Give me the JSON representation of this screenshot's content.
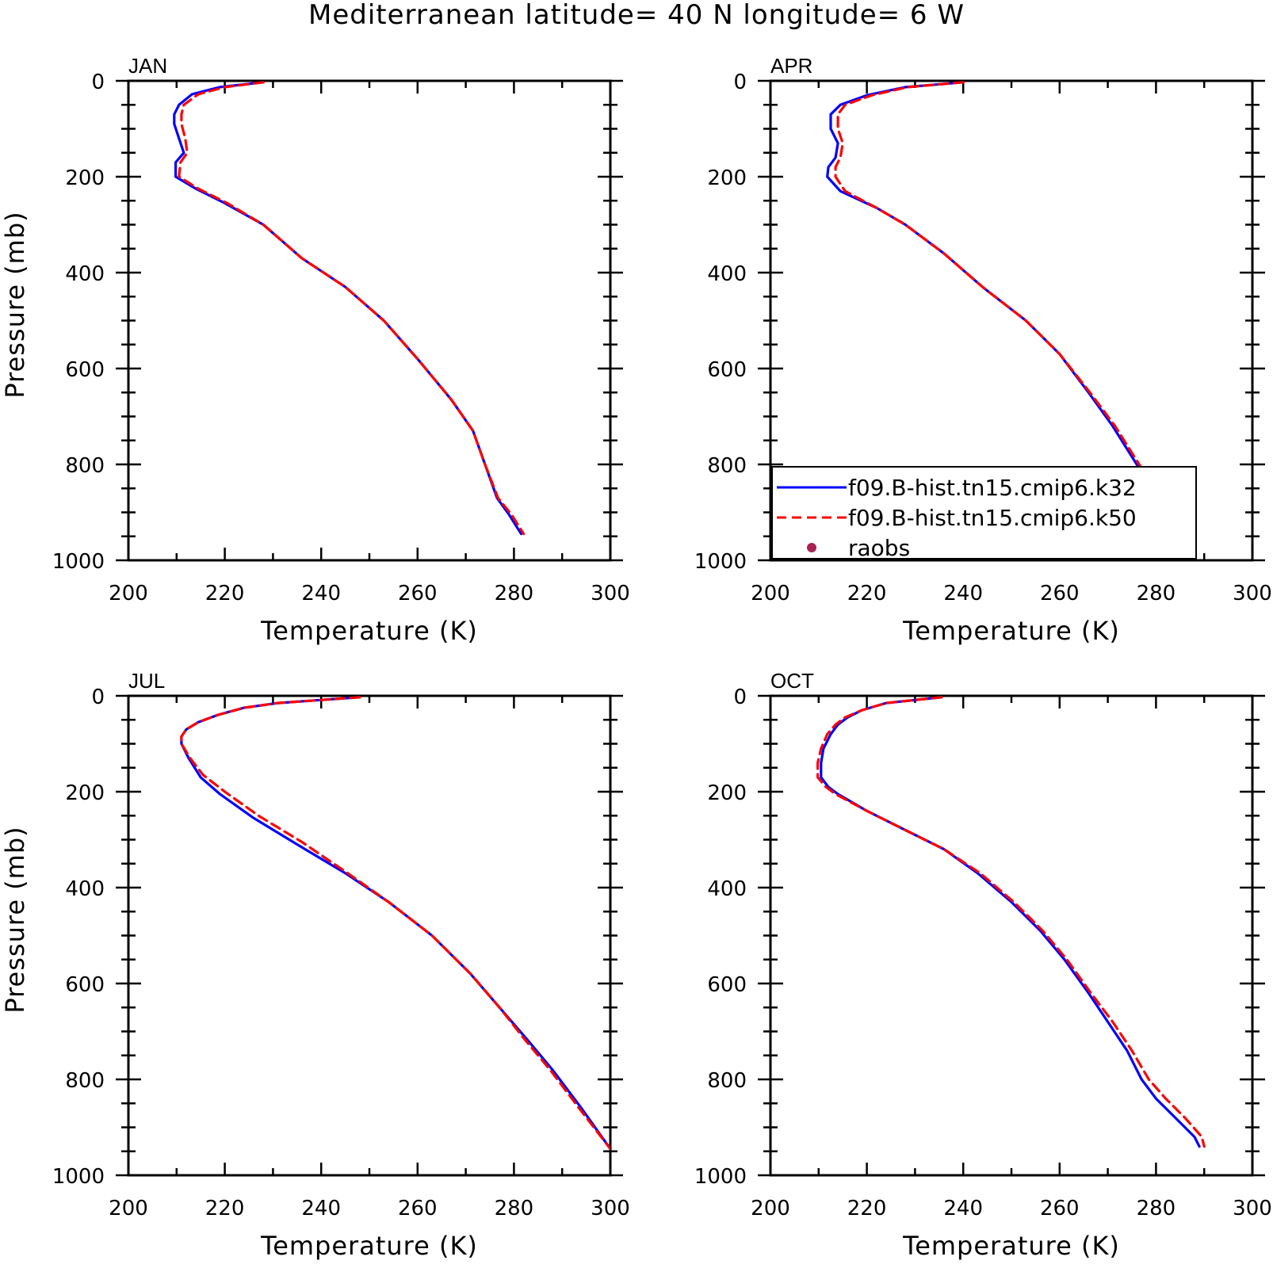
{
  "title": "Mediterranean  latitude= 40 N longitude= 6 W",
  "chart_data": [
    {
      "type": "line",
      "panel": "JAN",
      "xlabel": "Temperature (K)",
      "ylabel": "Pressure (mb)",
      "xlim": [
        200,
        300
      ],
      "ylim": [
        0,
        1000
      ],
      "y_inverted": true,
      "xticks": [
        "200",
        "220",
        "240",
        "260",
        "280",
        "300"
      ],
      "yticks": [
        "0",
        "200",
        "400",
        "600",
        "800",
        "1000"
      ],
      "series": [
        {
          "name": "f09.B-hist.tn15.cmip6.k32",
          "color": "#0000ff",
          "dash": "solid",
          "points": [
            [
              228.0,
              3
            ],
            [
              219.0,
              13
            ],
            [
              213.2,
              28
            ],
            [
              210.5,
              50
            ],
            [
              209.5,
              70
            ],
            [
              209.5,
              90
            ],
            [
              210.5,
              120
            ],
            [
              211.5,
              150
            ],
            [
              209.8,
              170
            ],
            [
              209.8,
              200
            ],
            [
              214.0,
              225
            ],
            [
              220.0,
              255
            ],
            [
              228.0,
              300
            ],
            [
              236.0,
              370
            ],
            [
              245.0,
              430
            ],
            [
              253.0,
              500
            ],
            [
              260.0,
              580
            ],
            [
              267.0,
              665
            ],
            [
              271.5,
              730
            ],
            [
              274.0,
              800
            ],
            [
              276.5,
              870
            ],
            [
              279.0,
              905
            ],
            [
              281.5,
              945
            ]
          ]
        },
        {
          "name": "f09.B-hist.tn15.cmip6.k50",
          "color": "#ff0000",
          "dash": "dashed",
          "points": [
            [
              228.0,
              3
            ],
            [
              220.0,
              13
            ],
            [
              214.5,
              28
            ],
            [
              211.5,
              50
            ],
            [
              211.0,
              70
            ],
            [
              211.0,
              90
            ],
            [
              211.8,
              120
            ],
            [
              212.2,
              150
            ],
            [
              210.8,
              170
            ],
            [
              210.5,
              200
            ],
            [
              214.5,
              225
            ],
            [
              220.5,
              255
            ],
            [
              228.0,
              300
            ],
            [
              236.0,
              370
            ],
            [
              245.0,
              430
            ],
            [
              253.0,
              500
            ],
            [
              260.0,
              580
            ],
            [
              267.0,
              665
            ],
            [
              271.5,
              730
            ],
            [
              274.0,
              800
            ],
            [
              276.7,
              870
            ],
            [
              279.5,
              905
            ],
            [
              282.0,
              945
            ]
          ]
        },
        {
          "name": "raobs",
          "color": "#aa2255",
          "marker": "dot",
          "points": []
        }
      ]
    },
    {
      "type": "line",
      "panel": "APR",
      "xlabel": "Temperature (K)",
      "ylabel": "",
      "xlim": [
        200,
        300
      ],
      "ylim": [
        0,
        1000
      ],
      "y_inverted": true,
      "xticks": [
        "200",
        "220",
        "240",
        "260",
        "280",
        "300"
      ],
      "yticks": [
        "0",
        "200",
        "400",
        "600",
        "800",
        "1000"
      ],
      "legend_position": "lower-left",
      "series": [
        {
          "name": "f09.B-hist.tn15.cmip6.k32",
          "color": "#0000ff",
          "dash": "solid",
          "points": [
            [
              240.0,
              3
            ],
            [
              228.0,
              13
            ],
            [
              220.0,
              30
            ],
            [
              214.5,
              50
            ],
            [
              212.5,
              70
            ],
            [
              212.5,
              100
            ],
            [
              214.0,
              130
            ],
            [
              213.5,
              160
            ],
            [
              212.0,
              180
            ],
            [
              211.8,
              200
            ],
            [
              214.5,
              230
            ],
            [
              222.0,
              265
            ],
            [
              228.0,
              300
            ],
            [
              236.0,
              360
            ],
            [
              244.0,
              430
            ],
            [
              253.0,
              500
            ],
            [
              260.0,
              570
            ],
            [
              266.0,
              650
            ],
            [
              271.0,
              720
            ],
            [
              276.0,
              800
            ],
            [
              280.0,
              860
            ],
            [
              284.0,
              905
            ],
            [
              286.5,
              940
            ]
          ]
        },
        {
          "name": "f09.B-hist.tn15.cmip6.k50",
          "color": "#ff0000",
          "dash": "dashed",
          "points": [
            [
              240.0,
              3
            ],
            [
              228.5,
              13
            ],
            [
              221.0,
              30
            ],
            [
              215.5,
              50
            ],
            [
              214.0,
              70
            ],
            [
              214.0,
              100
            ],
            [
              215.0,
              130
            ],
            [
              214.5,
              160
            ],
            [
              213.5,
              180
            ],
            [
              213.5,
              200
            ],
            [
              215.5,
              230
            ],
            [
              222.0,
              265
            ],
            [
              228.0,
              300
            ],
            [
              236.0,
              360
            ],
            [
              244.0,
              430
            ],
            [
              253.0,
              500
            ],
            [
              260.0,
              570
            ],
            [
              266.3,
              650
            ],
            [
              271.5,
              720
            ],
            [
              276.5,
              800
            ],
            [
              281.0,
              860
            ],
            [
              285.0,
              905
            ],
            [
              287.0,
              940
            ]
          ]
        },
        {
          "name": "raobs",
          "color": "#aa2255",
          "marker": "dot",
          "points": []
        }
      ]
    },
    {
      "type": "line",
      "panel": "JUL",
      "xlabel": "Temperature (K)",
      "ylabel": "Pressure (mb)",
      "xlim": [
        200,
        300
      ],
      "ylim": [
        0,
        1000
      ],
      "y_inverted": true,
      "xticks": [
        "200",
        "220",
        "240",
        "260",
        "280",
        "300"
      ],
      "yticks": [
        "0",
        "200",
        "400",
        "600",
        "800",
        "1000"
      ],
      "series": [
        {
          "name": "f09.B-hist.tn15.cmip6.k32",
          "color": "#0000ff",
          "dash": "solid",
          "points": [
            [
              248.0,
              3
            ],
            [
              231.0,
              15
            ],
            [
              224.0,
              25
            ],
            [
              218.5,
              40
            ],
            [
              214.5,
              55
            ],
            [
              212.0,
              70
            ],
            [
              211.0,
              85
            ],
            [
              211.0,
              100
            ],
            [
              212.5,
              130
            ],
            [
              215.0,
              170
            ],
            [
              219.0,
              205
            ],
            [
              226.0,
              255
            ],
            [
              235.0,
              310
            ],
            [
              245.0,
              370
            ],
            [
              254.0,
              430
            ],
            [
              263.0,
              500
            ],
            [
              271.0,
              580
            ],
            [
              277.0,
              650
            ],
            [
              283.0,
              720
            ],
            [
              288.0,
              780
            ],
            [
              294.0,
              860
            ],
            [
              300.0,
              945
            ]
          ]
        },
        {
          "name": "f09.B-hist.tn15.cmip6.k50",
          "color": "#ff0000",
          "dash": "dashed",
          "points": [
            [
              248.0,
              3
            ],
            [
              231.0,
              15
            ],
            [
              224.0,
              25
            ],
            [
              218.5,
              40
            ],
            [
              214.5,
              55
            ],
            [
              212.0,
              70
            ],
            [
              211.0,
              85
            ],
            [
              211.0,
              100
            ],
            [
              212.8,
              130
            ],
            [
              215.5,
              165
            ],
            [
              220.0,
              200
            ],
            [
              227.0,
              250
            ],
            [
              236.0,
              305
            ],
            [
              245.5,
              370
            ],
            [
              254.0,
              430
            ],
            [
              263.0,
              500
            ],
            [
              271.0,
              580
            ],
            [
              277.0,
              650
            ],
            [
              282.5,
              720
            ],
            [
              287.5,
              780
            ],
            [
              293.5,
              860
            ],
            [
              300.0,
              945
            ]
          ]
        },
        {
          "name": "raobs",
          "color": "#aa2255",
          "marker": "dot",
          "points": []
        }
      ]
    },
    {
      "type": "line",
      "panel": "OCT",
      "xlabel": "Temperature (K)",
      "ylabel": "",
      "xlim": [
        200,
        300
      ],
      "ylim": [
        0,
        1000
      ],
      "y_inverted": true,
      "xticks": [
        "200",
        "220",
        "240",
        "260",
        "280",
        "300"
      ],
      "yticks": [
        "0",
        "200",
        "400",
        "600",
        "800",
        "1000"
      ],
      "series": [
        {
          "name": "f09.B-hist.tn15.cmip6.k32",
          "color": "#0000ff",
          "dash": "solid",
          "points": [
            [
              235.5,
              3
            ],
            [
              224.0,
              15
            ],
            [
              219.0,
              30
            ],
            [
              216.0,
              45
            ],
            [
              214.0,
              60
            ],
            [
              212.5,
              80
            ],
            [
              211.0,
              110
            ],
            [
              210.5,
              140
            ],
            [
              210.5,
              170
            ],
            [
              212.0,
              190
            ],
            [
              214.0,
              205
            ],
            [
              220.0,
              240
            ],
            [
              228.0,
              280
            ],
            [
              236.0,
              320
            ],
            [
              243.0,
              370
            ],
            [
              250.0,
              430
            ],
            [
              256.0,
              490
            ],
            [
              261.0,
              550
            ],
            [
              266.0,
              620
            ],
            [
              270.0,
              680
            ],
            [
              274.0,
              740
            ],
            [
              277.0,
              800
            ],
            [
              280.0,
              840
            ],
            [
              284.0,
              880
            ],
            [
              288.0,
              920
            ],
            [
              289.0,
              940
            ]
          ]
        },
        {
          "name": "f09.B-hist.tn15.cmip6.k50",
          "color": "#ff0000",
          "dash": "dashed",
          "points": [
            [
              235.5,
              3
            ],
            [
              224.0,
              15
            ],
            [
              219.0,
              30
            ],
            [
              215.5,
              45
            ],
            [
              213.5,
              60
            ],
            [
              211.8,
              80
            ],
            [
              210.5,
              110
            ],
            [
              209.8,
              140
            ],
            [
              209.8,
              170
            ],
            [
              211.5,
              190
            ],
            [
              213.5,
              205
            ],
            [
              220.0,
              240
            ],
            [
              228.0,
              280
            ],
            [
              236.0,
              320
            ],
            [
              243.5,
              370
            ],
            [
              250.5,
              430
            ],
            [
              256.5,
              490
            ],
            [
              261.5,
              550
            ],
            [
              266.5,
              620
            ],
            [
              271.0,
              680
            ],
            [
              275.0,
              740
            ],
            [
              278.5,
              800
            ],
            [
              282.0,
              840
            ],
            [
              286.0,
              880
            ],
            [
              289.5,
              920
            ],
            [
              290.0,
              940
            ]
          ]
        },
        {
          "name": "raobs",
          "color": "#aa2255",
          "marker": "dot",
          "points": []
        }
      ]
    }
  ]
}
